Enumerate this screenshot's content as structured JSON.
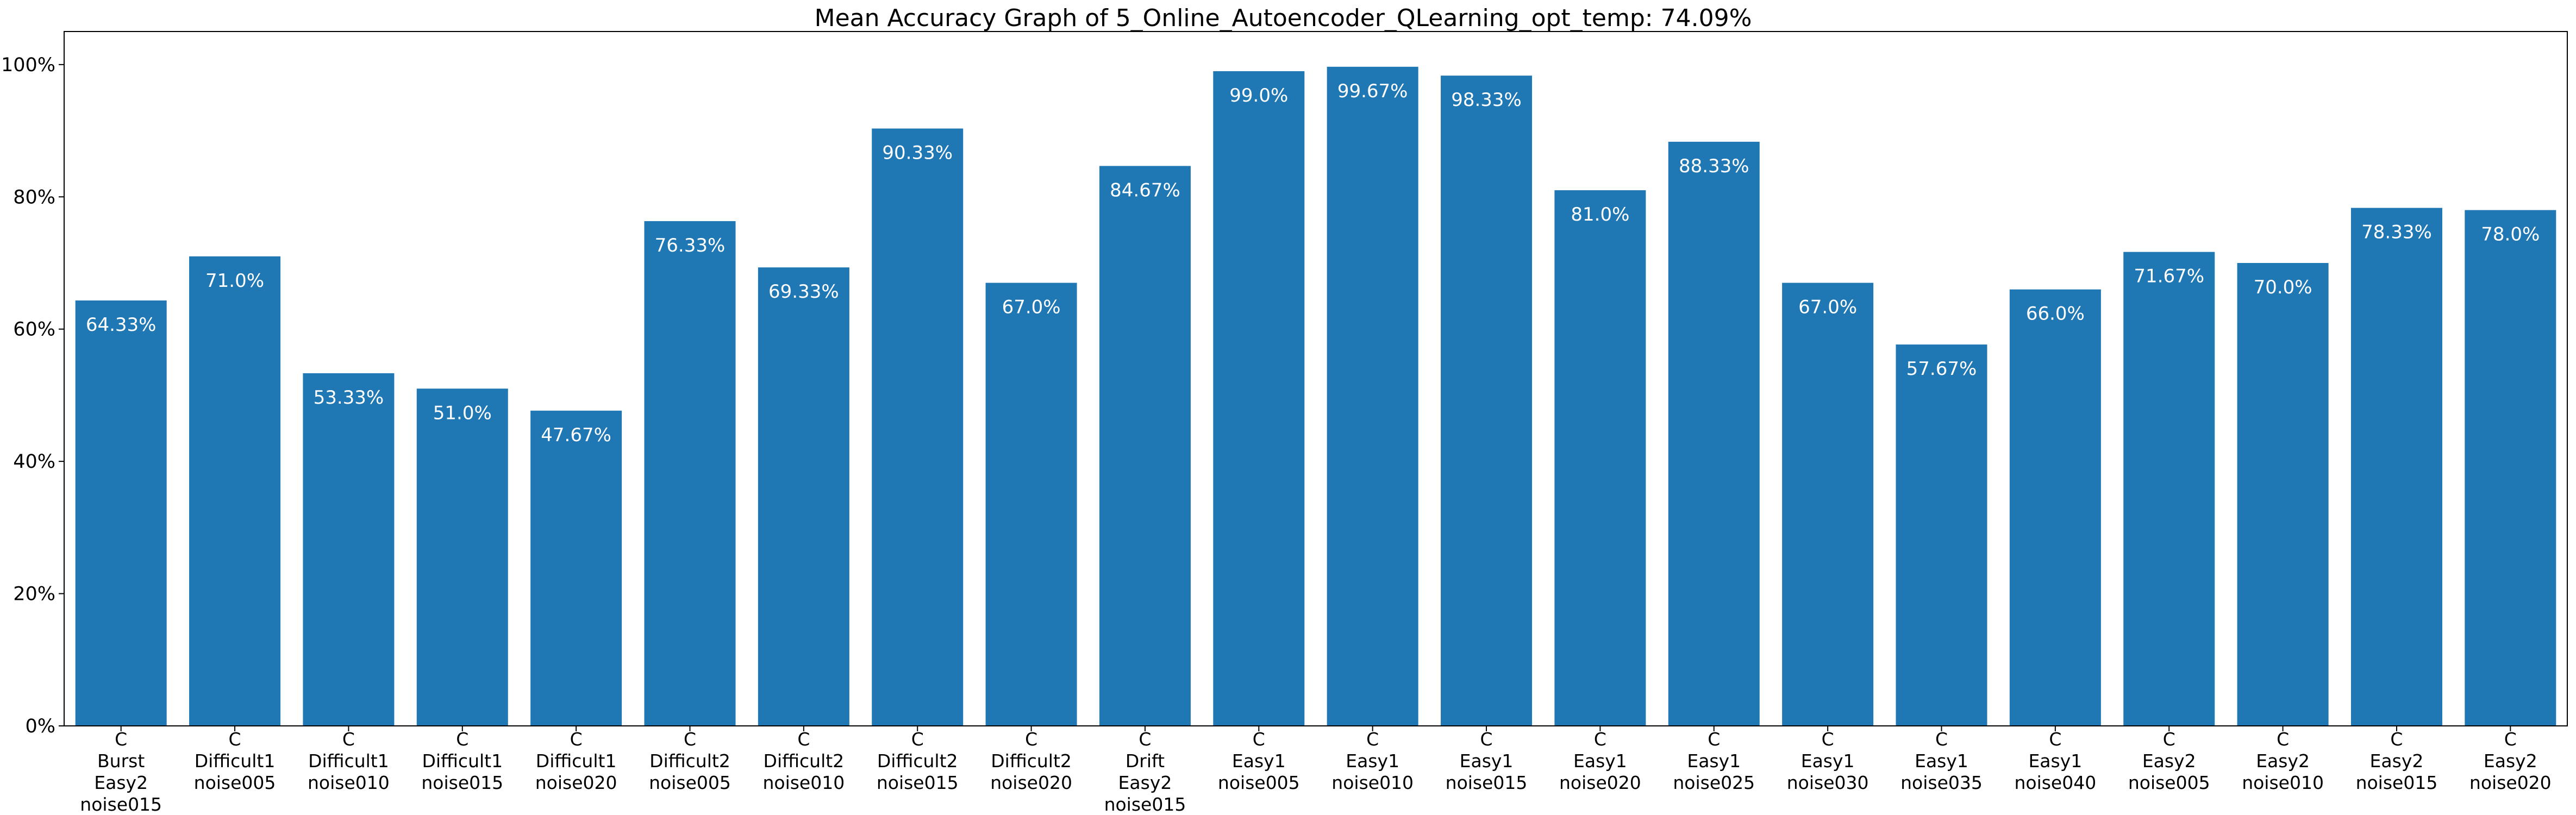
{
  "chart_data": {
    "type": "bar",
    "title": "Mean Accuracy Graph of 5_Online_Autoencoder_QLearning_opt_temp: 74.09%",
    "xlabel": "",
    "ylabel": "",
    "ylim": [
      0,
      105
    ],
    "yticks": [
      {
        "value": 0,
        "label": "0%"
      },
      {
        "value": 20,
        "label": "20%"
      },
      {
        "value": 40,
        "label": "40%"
      },
      {
        "value": 60,
        "label": "60%"
      },
      {
        "value": 80,
        "label": "80%"
      },
      {
        "value": 100,
        "label": "100%"
      }
    ],
    "grid": false,
    "bar_color": "#1f77b4",
    "categories": [
      [
        "C",
        "Burst",
        "Easy2",
        "noise015"
      ],
      [
        "C",
        "Difficult1",
        "noise005"
      ],
      [
        "C",
        "Difficult1",
        "noise010"
      ],
      [
        "C",
        "Difficult1",
        "noise015"
      ],
      [
        "C",
        "Difficult1",
        "noise020"
      ],
      [
        "C",
        "Difficult2",
        "noise005"
      ],
      [
        "C",
        "Difficult2",
        "noise010"
      ],
      [
        "C",
        "Difficult2",
        "noise015"
      ],
      [
        "C",
        "Difficult2",
        "noise020"
      ],
      [
        "C",
        "Drift",
        "Easy2",
        "noise015"
      ],
      [
        "C",
        "Easy1",
        "noise005"
      ],
      [
        "C",
        "Easy1",
        "noise010"
      ],
      [
        "C",
        "Easy1",
        "noise015"
      ],
      [
        "C",
        "Easy1",
        "noise020"
      ],
      [
        "C",
        "Easy1",
        "noise025"
      ],
      [
        "C",
        "Easy1",
        "noise030"
      ],
      [
        "C",
        "Easy1",
        "noise035"
      ],
      [
        "C",
        "Easy1",
        "noise040"
      ],
      [
        "C",
        "Easy2",
        "noise005"
      ],
      [
        "C",
        "Easy2",
        "noise010"
      ],
      [
        "C",
        "Easy2",
        "noise015"
      ],
      [
        "C",
        "Easy2",
        "noise020"
      ]
    ],
    "values": [
      64.33,
      71.0,
      53.33,
      51.0,
      47.67,
      76.33,
      69.33,
      90.33,
      67.0,
      84.67,
      99.0,
      99.67,
      98.33,
      81.0,
      88.33,
      67.0,
      57.67,
      66.0,
      71.67,
      70.0,
      78.33,
      78.0
    ],
    "data_labels": [
      "64.33%",
      "71.0%",
      "53.33%",
      "51.0%",
      "47.67%",
      "76.33%",
      "69.33%",
      "90.33%",
      "67.0%",
      "84.67%",
      "99.0%",
      "99.67%",
      "98.33%",
      "81.0%",
      "88.33%",
      "67.0%",
      "57.67%",
      "66.0%",
      "71.67%",
      "70.0%",
      "78.33%",
      "78.0%"
    ]
  }
}
